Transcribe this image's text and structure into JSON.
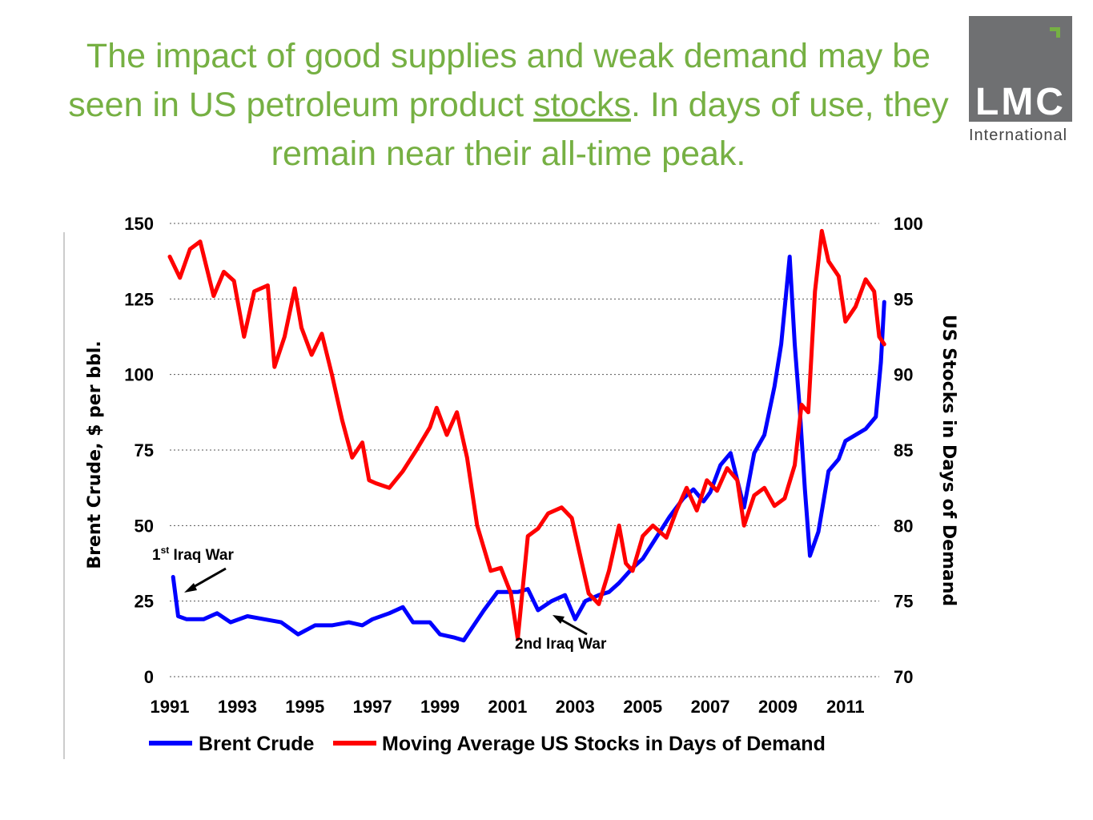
{
  "title": {
    "part1": "The impact of good supplies and weak demand may be seen in US petroleum product ",
    "underlined": "stocks",
    "part2": ". In days of use, they remain near their all-time peak."
  },
  "logo": {
    "text": "LMC",
    "sub": "International",
    "bg_color": "#6f7072",
    "mark_color": "#76b043"
  },
  "chart_data": {
    "type": "line",
    "y_left": {
      "label": "Brent Crude, $ per bbl.",
      "range": [
        0,
        150
      ],
      "ticks": [
        "0",
        "25",
        "50",
        "75",
        "100",
        "125",
        "150"
      ]
    },
    "y_right": {
      "label": "US Stocks in Days of Demand",
      "range": [
        70,
        100
      ],
      "ticks": [
        "70",
        "75",
        "80",
        "85",
        "90",
        "95",
        "100"
      ]
    },
    "x": {
      "range": [
        1991,
        2012
      ],
      "ticks": [
        "1991",
        "1993",
        "1995",
        "1997",
        "1999",
        "2001",
        "2003",
        "2005",
        "2007",
        "2009",
        "2011"
      ]
    },
    "grid": "horizontal dotted",
    "legend_placement": "bottom",
    "series": [
      {
        "name": "Brent Crude",
        "axis": "left",
        "color": "#0000ff",
        "points": [
          [
            1991.1,
            33
          ],
          [
            1991.25,
            20
          ],
          [
            1991.5,
            19
          ],
          [
            1992,
            19
          ],
          [
            1992.4,
            21
          ],
          [
            1992.8,
            18
          ],
          [
            1993.3,
            20
          ],
          [
            1993.8,
            19
          ],
          [
            1994.3,
            18
          ],
          [
            1994.8,
            14
          ],
          [
            1995.3,
            17
          ],
          [
            1995.8,
            17
          ],
          [
            1996.3,
            18
          ],
          [
            1996.7,
            17
          ],
          [
            1997.0,
            19
          ],
          [
            1997.5,
            21
          ],
          [
            1997.9,
            23
          ],
          [
            1998.2,
            18
          ],
          [
            1998.7,
            18
          ],
          [
            1999.0,
            14
          ],
          [
            1999.4,
            13
          ],
          [
            1999.7,
            12
          ],
          [
            2000.0,
            17
          ],
          [
            2000.3,
            22
          ],
          [
            2000.7,
            28
          ],
          [
            2001.0,
            28
          ],
          [
            2001.3,
            28
          ],
          [
            2001.6,
            29
          ],
          [
            2001.9,
            22
          ],
          [
            2002.3,
            25
          ],
          [
            2002.7,
            27
          ],
          [
            2003.0,
            19
          ],
          [
            2003.3,
            25
          ],
          [
            2003.7,
            27
          ],
          [
            2004.0,
            28
          ],
          [
            2004.3,
            31
          ],
          [
            2004.7,
            36
          ],
          [
            2005.0,
            39
          ],
          [
            2005.4,
            46
          ],
          [
            2005.8,
            53
          ],
          [
            2006.2,
            59
          ],
          [
            2006.5,
            62
          ],
          [
            2006.8,
            58
          ],
          [
            2007.0,
            61
          ],
          [
            2007.3,
            70
          ],
          [
            2007.6,
            74
          ],
          [
            2008.0,
            56
          ],
          [
            2008.3,
            74
          ],
          [
            2008.6,
            80
          ],
          [
            2008.9,
            96
          ],
          [
            2009.1,
            110
          ],
          [
            2009.35,
            139
          ],
          [
            2009.5,
            110
          ],
          [
            2009.65,
            88
          ],
          [
            2009.8,
            62
          ],
          [
            2009.95,
            40
          ],
          [
            2010.2,
            48
          ],
          [
            2010.5,
            68
          ],
          [
            2010.8,
            72
          ],
          [
            2011.0,
            78
          ],
          [
            2011.3,
            80
          ],
          [
            2011.6,
            82
          ],
          [
            2011.9,
            86
          ],
          [
            2012.05,
            104
          ],
          [
            2012.15,
            124
          ]
        ]
      },
      {
        "name": "Moving Average US Stocks in Days of Demand",
        "axis": "right",
        "color": "#ff0000",
        "points": [
          [
            1991.0,
            97.8
          ],
          [
            1991.3,
            96.4
          ],
          [
            1991.6,
            98.3
          ],
          [
            1991.9,
            98.8
          ],
          [
            1992.3,
            95.2
          ],
          [
            1992.6,
            96.8
          ],
          [
            1992.9,
            96.2
          ],
          [
            1993.2,
            92.5
          ],
          [
            1993.5,
            95.5
          ],
          [
            1993.9,
            95.9
          ],
          [
            1994.1,
            90.5
          ],
          [
            1994.4,
            92.5
          ],
          [
            1994.7,
            95.7
          ],
          [
            1994.9,
            93.1
          ],
          [
            1995.2,
            91.3
          ],
          [
            1995.5,
            92.7
          ],
          [
            1995.8,
            90.0
          ],
          [
            1996.1,
            87.0
          ],
          [
            1996.4,
            84.5
          ],
          [
            1996.7,
            85.5
          ],
          [
            1996.9,
            83.0
          ],
          [
            1997.1,
            82.8
          ],
          [
            1997.5,
            82.5
          ],
          [
            1997.9,
            83.6
          ],
          [
            1998.3,
            85.0
          ],
          [
            1998.7,
            86.5
          ],
          [
            1998.9,
            87.8
          ],
          [
            1999.2,
            86.0
          ],
          [
            1999.5,
            87.5
          ],
          [
            1999.8,
            84.5
          ],
          [
            2000.1,
            80.0
          ],
          [
            2000.5,
            77.0
          ],
          [
            2000.8,
            77.2
          ],
          [
            2001.1,
            75.5
          ],
          [
            2001.3,
            72.5
          ],
          [
            2001.6,
            79.3
          ],
          [
            2001.9,
            79.8
          ],
          [
            2002.2,
            80.8
          ],
          [
            2002.6,
            81.2
          ],
          [
            2002.9,
            80.5
          ],
          [
            2003.1,
            78.5
          ],
          [
            2003.4,
            75.5
          ],
          [
            2003.7,
            74.8
          ],
          [
            2004.0,
            77.0
          ],
          [
            2004.3,
            80.0
          ],
          [
            2004.5,
            77.5
          ],
          [
            2004.7,
            77.0
          ],
          [
            2005.0,
            79.3
          ],
          [
            2005.3,
            80.0
          ],
          [
            2005.7,
            79.2
          ],
          [
            2006.0,
            81.0
          ],
          [
            2006.3,
            82.5
          ],
          [
            2006.6,
            81.0
          ],
          [
            2006.9,
            83.0
          ],
          [
            2007.2,
            82.3
          ],
          [
            2007.5,
            83.8
          ],
          [
            2007.8,
            83.0
          ],
          [
            2008.0,
            80.0
          ],
          [
            2008.3,
            82.0
          ],
          [
            2008.6,
            82.5
          ],
          [
            2008.9,
            81.3
          ],
          [
            2009.2,
            81.8
          ],
          [
            2009.5,
            84.0
          ],
          [
            2009.7,
            88.0
          ],
          [
            2009.9,
            87.5
          ],
          [
            2010.1,
            95.5
          ],
          [
            2010.3,
            99.5
          ],
          [
            2010.5,
            97.5
          ],
          [
            2010.8,
            96.5
          ],
          [
            2011.0,
            93.5
          ],
          [
            2011.3,
            94.5
          ],
          [
            2011.6,
            96.3
          ],
          [
            2011.85,
            95.5
          ],
          [
            2012.0,
            92.5
          ],
          [
            2012.15,
            92.0
          ]
        ]
      }
    ],
    "annotations": [
      {
        "text_main": "1",
        "text_sup": "st",
        "text_rest": " Iraq War"
      },
      {
        "text": "2nd Iraq War"
      }
    ]
  }
}
